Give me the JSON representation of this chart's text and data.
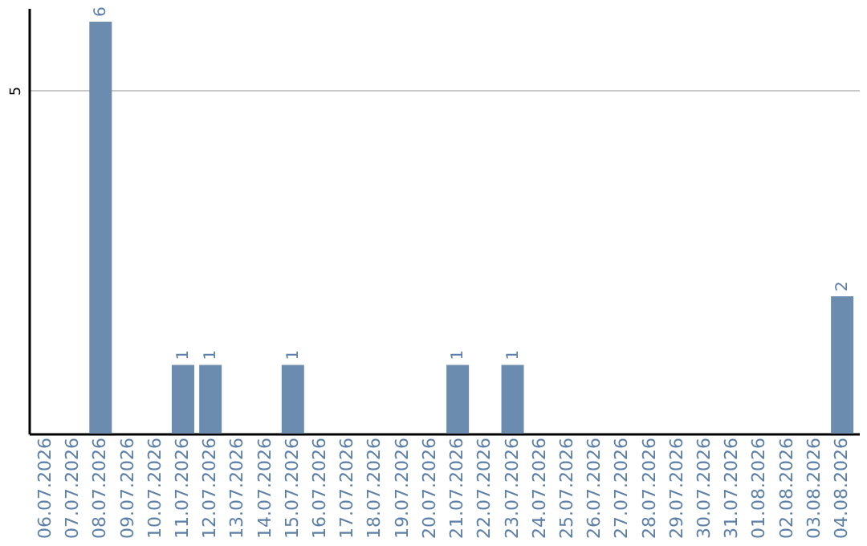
{
  "chart_data": {
    "type": "bar",
    "categories": [
      "06.07.2026",
      "07.07.2026",
      "08.07.2026",
      "09.07.2026",
      "10.07.2026",
      "11.07.2026",
      "12.07.2026",
      "13.07.2026",
      "14.07.2026",
      "15.07.2026",
      "16.07.2026",
      "17.07.2026",
      "18.07.2026",
      "19.07.2026",
      "20.07.2026",
      "21.07.2026",
      "22.07.2026",
      "23.07.2026",
      "24.07.2026",
      "25.07.2026",
      "26.07.2026",
      "27.07.2026",
      "28.07.2026",
      "29.07.2026",
      "30.07.2026",
      "31.07.2026",
      "01.08.2026",
      "02.08.2026",
      "03.08.2026",
      "04.08.2026"
    ],
    "values": [
      0,
      0,
      6,
      0,
      0,
      1,
      1,
      0,
      0,
      1,
      0,
      0,
      0,
      0,
      0,
      1,
      0,
      1,
      0,
      0,
      0,
      0,
      0,
      0,
      0,
      0,
      0,
      0,
      0,
      2
    ],
    "value_labels": [
      null,
      null,
      "6",
      null,
      null,
      "1",
      "1",
      null,
      null,
      "1",
      null,
      null,
      null,
      null,
      null,
      "1",
      null,
      "1",
      null,
      null,
      null,
      null,
      null,
      null,
      null,
      null,
      null,
      null,
      null,
      "2"
    ],
    "color": "#6b8cae",
    "ylim": [
      0,
      6.2
    ],
    "yticks": [
      5
    ],
    "grid": "y"
  }
}
